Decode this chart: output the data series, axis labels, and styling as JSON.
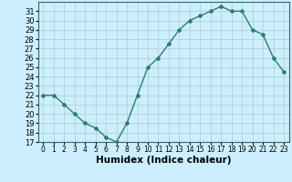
{
  "x": [
    0,
    1,
    2,
    3,
    4,
    5,
    6,
    7,
    8,
    9,
    10,
    11,
    12,
    13,
    14,
    15,
    16,
    17,
    18,
    19,
    20,
    21,
    22,
    23
  ],
  "y": [
    22,
    22,
    21,
    20,
    19,
    18.5,
    17.5,
    17,
    19,
    22,
    25,
    26,
    27.5,
    29,
    30,
    30.5,
    31,
    31.5,
    31,
    31,
    29,
    28.5,
    26,
    24.5
  ],
  "line_color": "#2e7d6e",
  "marker": "D",
  "marker_size": 2,
  "background_color": "#cceeff",
  "grid_color": "#aacccc",
  "xlabel": "Humidex (Indice chaleur)",
  "xlim": [
    -0.5,
    23.5
  ],
  "ylim": [
    17,
    32
  ],
  "yticks": [
    17,
    18,
    19,
    20,
    21,
    22,
    23,
    24,
    25,
    26,
    27,
    28,
    29,
    30,
    31
  ],
  "xticks": [
    0,
    1,
    2,
    3,
    4,
    5,
    6,
    7,
    8,
    9,
    10,
    11,
    12,
    13,
    14,
    15,
    16,
    17,
    18,
    19,
    20,
    21,
    22,
    23
  ],
  "xlabel_fontsize": 7.5,
  "ytick_fontsize": 6,
  "xtick_fontsize": 5.5,
  "line_width": 1.0
}
